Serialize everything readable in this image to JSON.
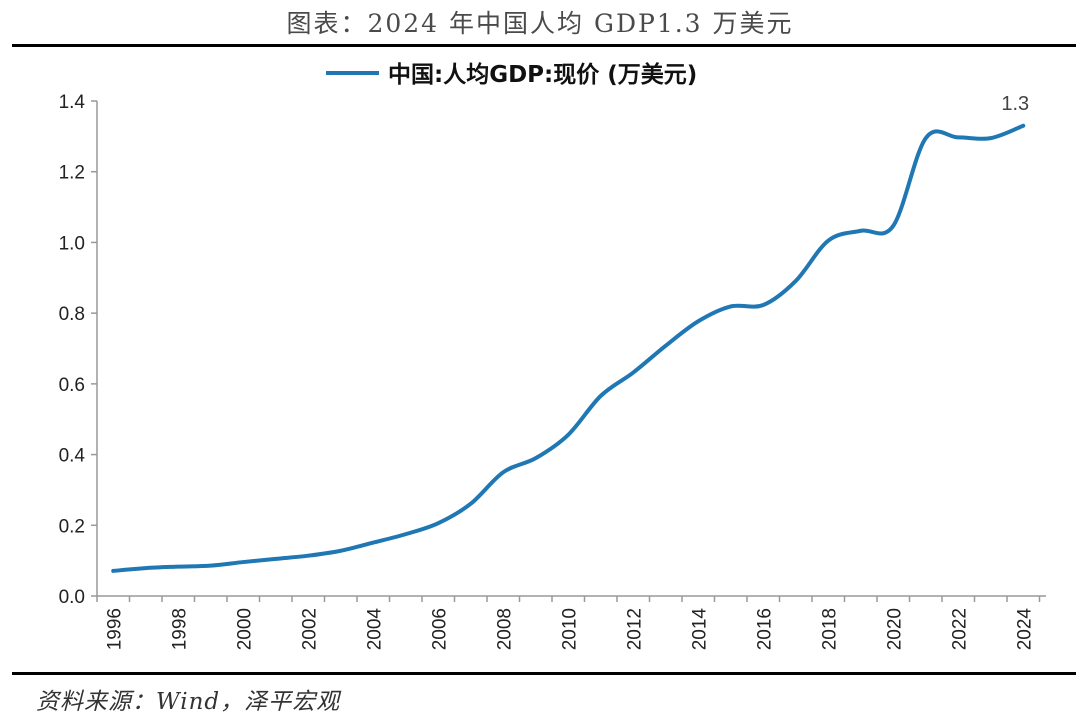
{
  "figure": {
    "title": "图表：2024 年中国人均 GDP1.3 万美元",
    "source": "资料来源：Wind，泽平宏观"
  },
  "chart_data": {
    "type": "line",
    "title": "",
    "xlabel": "",
    "ylabel": "",
    "ylim": [
      0,
      1.4
    ],
    "yticks": [
      "0.0",
      "0.2",
      "0.4",
      "0.6",
      "0.8",
      "1.0",
      "1.2",
      "1.4"
    ],
    "xticks": [
      "1996",
      "1998",
      "2000",
      "2002",
      "2004",
      "2006",
      "2008",
      "2010",
      "2012",
      "2014",
      "2016",
      "2018",
      "2020",
      "2022",
      "2024"
    ],
    "legend_position": "top-center",
    "grid": false,
    "series": [
      {
        "name": "中国:人均GDP:现价 (万美元)",
        "color": "#1f77b4",
        "x": [
          1996,
          1997,
          1998,
          1999,
          2000,
          2001,
          2002,
          2003,
          2004,
          2005,
          2006,
          2007,
          2008,
          2009,
          2010,
          2011,
          2012,
          2013,
          2014,
          2015,
          2016,
          2017,
          2018,
          2019,
          2020,
          2021,
          2022,
          2023,
          2024
        ],
        "values": [
          0.071,
          0.079,
          0.083,
          0.086,
          0.096,
          0.105,
          0.114,
          0.128,
          0.151,
          0.175,
          0.206,
          0.261,
          0.35,
          0.39,
          0.456,
          0.566,
          0.632,
          0.708,
          0.777,
          0.819,
          0.823,
          0.891,
          1.005,
          1.033,
          1.047,
          1.295,
          1.297,
          1.295,
          1.33
        ]
      }
    ],
    "annotations": [
      {
        "text": "1.3",
        "x": 2024,
        "y": 1.33
      }
    ]
  }
}
